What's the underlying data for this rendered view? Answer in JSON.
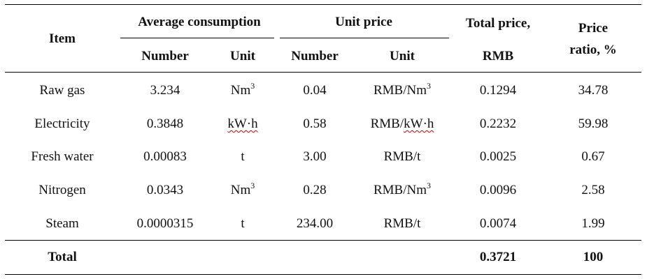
{
  "header": {
    "item": "Item",
    "average_consumption": "Average consumption",
    "unit_price": "Unit price",
    "total_price_line1": "Total price,",
    "total_price_line2": "RMB",
    "price_ratio_line1": "Price",
    "price_ratio_line2": "ratio, %",
    "sub_number_1": "Number",
    "sub_unit_1": "Unit",
    "sub_number_2": "Number",
    "sub_unit_2": "Unit"
  },
  "rows": [
    {
      "item": "Raw gas",
      "cons_number": "3.234",
      "cons_unit_base": "Nm",
      "cons_unit_sup": "3",
      "price_number": "0.04",
      "price_unit_base": "RMB/Nm",
      "price_unit_sup": "3",
      "total": "0.1294",
      "ratio": "34.78"
    },
    {
      "item": "Electricity",
      "cons_number": "0.3848",
      "cons_unit_base": "kW·h",
      "cons_unit_sup": "",
      "price_number": "0.58",
      "price_unit_base": "RMB/kW·h",
      "price_unit_sup": "",
      "total": "0.2232",
      "ratio": "59.98"
    },
    {
      "item": "Fresh water",
      "cons_number": "0.00083",
      "cons_unit_base": "t",
      "cons_unit_sup": "",
      "price_number": "3.00",
      "price_unit_base": "RMB/t",
      "price_unit_sup": "",
      "total": "0.0025",
      "ratio": "0.67"
    },
    {
      "item": "Nitrogen",
      "cons_number": "0.0343",
      "cons_unit_base": "Nm",
      "cons_unit_sup": "3",
      "price_number": "0.28",
      "price_unit_base": "RMB/Nm",
      "price_unit_sup": "3",
      "total": "0.0096",
      "ratio": "2.58"
    },
    {
      "item": "Steam",
      "cons_number": "0.0000315",
      "cons_unit_base": "t",
      "cons_unit_sup": "",
      "price_number": "234.00",
      "price_unit_base": "RMB/t",
      "price_unit_sup": "",
      "total": "0.0074",
      "ratio": "1.99"
    }
  ],
  "total_row": {
    "label": "Total",
    "total": "0.3721",
    "ratio": "100"
  }
}
